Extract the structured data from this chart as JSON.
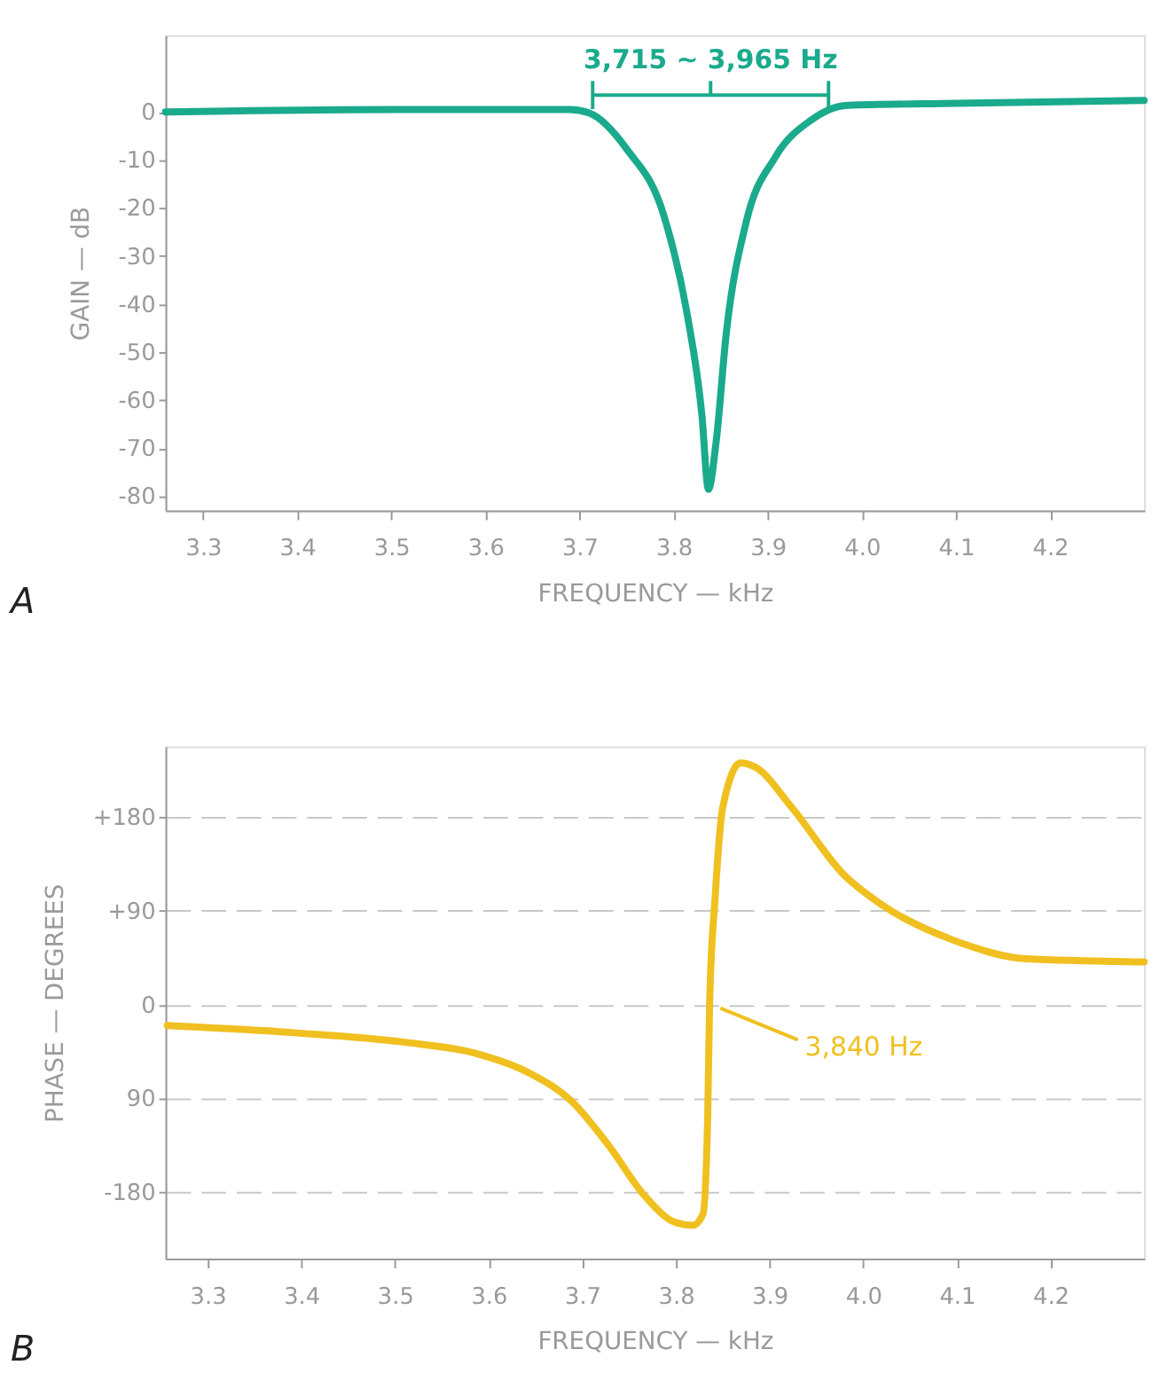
{
  "chart_data": [
    {
      "type": "line",
      "xlabel": "FREQUENCY — kHz",
      "ylabel": "GAIN — dB",
      "x": [
        3.26,
        3.5,
        3.69,
        3.71,
        3.75,
        3.79,
        3.814,
        3.83,
        3.837,
        3.845,
        3.856,
        3.877,
        3.908,
        3.946,
        3.985,
        4.1,
        4.3
      ],
      "series": [
        {
          "color": "#1aaa8c",
          "values": [
            0,
            0.5,
            0.5,
            -0.2,
            -7.7,
            -21.8,
            -41.7,
            -63,
            -78.6,
            -69,
            -46,
            -23,
            -9.4,
            -1.7,
            1.4,
            1.8,
            2.4
          ]
        }
      ],
      "xlim": [
        3.26,
        4.3
      ],
      "xticks": [
        3.3,
        3.4,
        3.5,
        3.6,
        3.7,
        3.8,
        3.9,
        {
          "value": 4,
          "label": "4.0"
        },
        4.1,
        4.2
      ],
      "ylim": [
        -83,
        16
      ],
      "yticks": [
        0,
        -10,
        -20,
        -30,
        -40,
        -50,
        -60,
        -70,
        -80
      ],
      "annotations": [
        "3,715 ~ 3,965 Hz",
        "A"
      ],
      "grid": false
    },
    {
      "type": "line",
      "xlabel": "FREQUENCY — kHz",
      "ylabel": "PHASE — DEGREES",
      "x": [
        3.257,
        3.392,
        3.509,
        3.587,
        3.642,
        3.689,
        3.728,
        3.767,
        3.799,
        3.818,
        3.829,
        3.834,
        3.836,
        3.842,
        3.85,
        3.869,
        3.885,
        3.924,
        3.979,
        4.018,
        4.096,
        4.175,
        4.3
      ],
      "series": [
        {
          "color": "#f0c020",
          "values": [
            -20,
            -27,
            -36,
            -47,
            -65,
            -93,
            -135,
            -184,
            -209,
            -212,
            -201,
            -107,
            0,
            104,
            189,
            232,
            228,
            189,
            125,
            97,
            62,
            44,
            41
          ]
        }
      ],
      "xlim": [
        3.255,
        4.3
      ],
      "xticks": [
        3.3,
        3.4,
        3.5,
        3.6,
        3.7,
        3.8,
        3.9,
        {
          "value": 4,
          "label": "4.0"
        },
        4.1,
        4.2
      ],
      "ylim": [
        -244,
        248
      ],
      "yticks": [
        {
          "value": 180,
          "label": "+180"
        },
        {
          "value": 90,
          "label": "+90"
        },
        0,
        {
          "value": -90,
          "label": "90"
        },
        -180
      ],
      "annotations": [
        {
          "text": "3,840 Hz",
          "x": 3.84,
          "y": 0
        },
        "B"
      ],
      "grid": "y"
    }
  ]
}
